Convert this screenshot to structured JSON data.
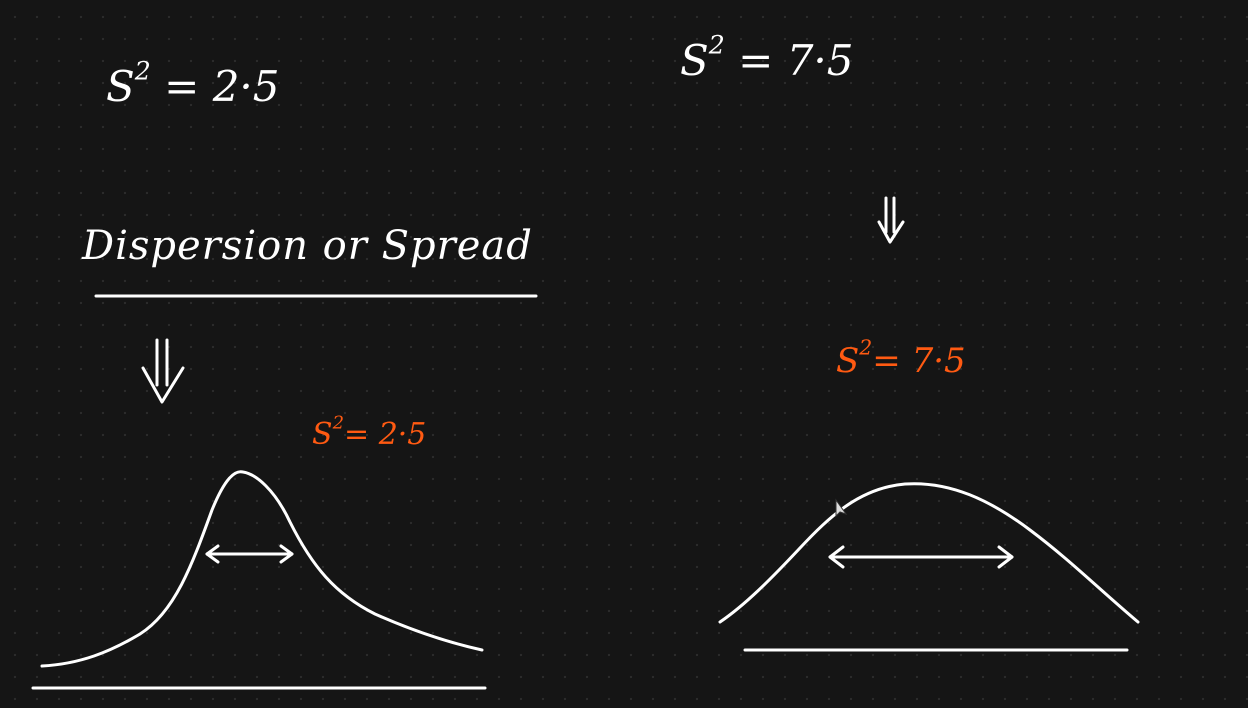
{
  "whiteboard": {
    "left": {
      "variance_label": "S",
      "variance_exponent": "2",
      "variance_value": "= 2·5",
      "heading": "Dispersion or Spread",
      "annotation_label": "S",
      "annotation_exponent": "2",
      "annotation_value": "= 2·5"
    },
    "right": {
      "variance_label": "S",
      "variance_exponent": "2",
      "variance_value": "= 7·5",
      "annotation_label": "S",
      "annotation_exponent": "2",
      "annotation_value": "= 7·5"
    }
  },
  "colors": {
    "background": "#151515",
    "ink": "#ffffff",
    "accent": "#ff5a12"
  },
  "icons": {
    "left_arrow": "double-down-arrow-icon",
    "right_arrow": "double-down-arrow-icon",
    "cursor": "pointer-cursor-icon"
  }
}
